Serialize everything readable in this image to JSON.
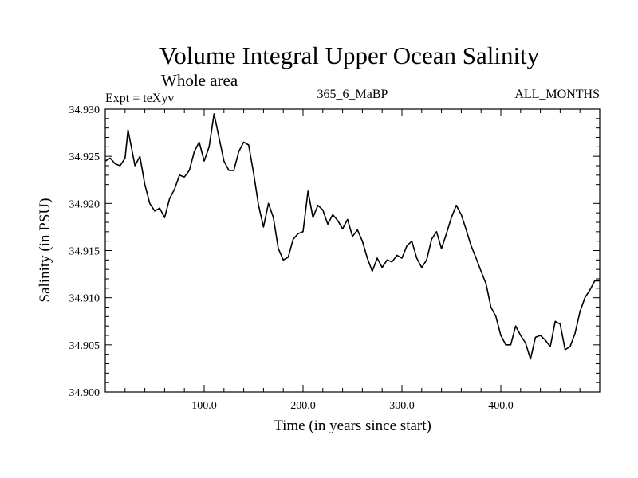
{
  "chart_data": {
    "type": "line",
    "title": "Volume Integral Upper Ocean Salinity",
    "subtitle": "Whole area",
    "experiment_label": "Expt = teXyv",
    "run_label": "365_6_MaBP",
    "months_label": "ALL_MONTHS",
    "xlabel": "Time (in years since start)",
    "ylabel": "Salinity (in PSU)",
    "xlim": [
      0,
      500
    ],
    "ylim": [
      34.9,
      34.93
    ],
    "grid": false,
    "x_ticks": [
      {
        "value": 100,
        "label": "100.0"
      },
      {
        "value": 200,
        "label": "200.0"
      },
      {
        "value": 300,
        "label": "300.0"
      },
      {
        "value": 400,
        "label": "400.0"
      }
    ],
    "y_ticks": [
      {
        "value": 34.9,
        "label": "34.900"
      },
      {
        "value": 34.905,
        "label": "34.905"
      },
      {
        "value": 34.91,
        "label": "34.910"
      },
      {
        "value": 34.915,
        "label": "34.915"
      },
      {
        "value": 34.92,
        "label": "34.920"
      },
      {
        "value": 34.925,
        "label": "34.925"
      },
      {
        "value": 34.93,
        "label": "34.930"
      }
    ],
    "series": [
      {
        "name": "Salinity",
        "color": "#000000",
        "x": [
          0,
          5,
          10,
          15,
          20,
          23,
          26,
          30,
          35,
          40,
          45,
          50,
          55,
          60,
          65,
          70,
          75,
          80,
          85,
          90,
          95,
          100,
          105,
          110,
          115,
          120,
          125,
          130,
          135,
          140,
          145,
          150,
          155,
          160,
          165,
          170,
          175,
          180,
          185,
          190,
          195,
          200,
          205,
          210,
          215,
          220,
          225,
          230,
          235,
          240,
          245,
          250,
          255,
          260,
          265,
          270,
          275,
          280,
          285,
          290,
          295,
          300,
          305,
          310,
          315,
          320,
          325,
          330,
          335,
          340,
          345,
          350,
          355,
          360,
          365,
          370,
          375,
          380,
          385,
          390,
          395,
          400,
          405,
          410,
          415,
          420,
          425,
          430,
          435,
          440,
          445,
          450,
          455,
          460,
          465,
          470,
          475,
          480,
          485,
          490,
          495,
          500
        ],
        "values": [
          34.9245,
          34.9248,
          34.9242,
          34.924,
          34.9248,
          34.9278,
          34.9262,
          34.924,
          34.925,
          34.922,
          34.92,
          34.9192,
          34.9195,
          34.9185,
          34.9205,
          34.9215,
          34.923,
          34.9228,
          34.9235,
          34.9255,
          34.9265,
          34.9245,
          34.926,
          34.9295,
          34.927,
          34.9245,
          34.9235,
          34.9235,
          34.9255,
          34.9265,
          34.9262,
          34.9232,
          34.9198,
          34.9175,
          34.92,
          34.9185,
          34.9152,
          34.914,
          34.9143,
          34.9162,
          34.9168,
          34.917,
          34.9213,
          34.9185,
          34.9198,
          34.9193,
          34.9178,
          34.9188,
          34.9182,
          34.9173,
          34.9183,
          34.9165,
          34.9172,
          34.916,
          34.9142,
          34.9128,
          34.9142,
          34.9132,
          34.914,
          34.9138,
          34.9145,
          34.9142,
          34.9155,
          34.916,
          34.9142,
          34.9132,
          34.914,
          34.9162,
          34.917,
          34.9152,
          34.9168,
          34.9185,
          34.9198,
          34.9188,
          34.9172,
          34.9155,
          34.9142,
          34.9128,
          34.9115,
          34.909,
          34.908,
          34.906,
          34.905,
          34.905,
          34.907,
          34.906,
          34.9052,
          34.9035,
          34.9058,
          34.906,
          34.9055,
          34.9048,
          34.9075,
          34.9072,
          34.9045,
          34.9048,
          34.9062,
          34.9085,
          34.91,
          34.9108,
          34.9118,
          34.9118
        ]
      }
    ]
  }
}
